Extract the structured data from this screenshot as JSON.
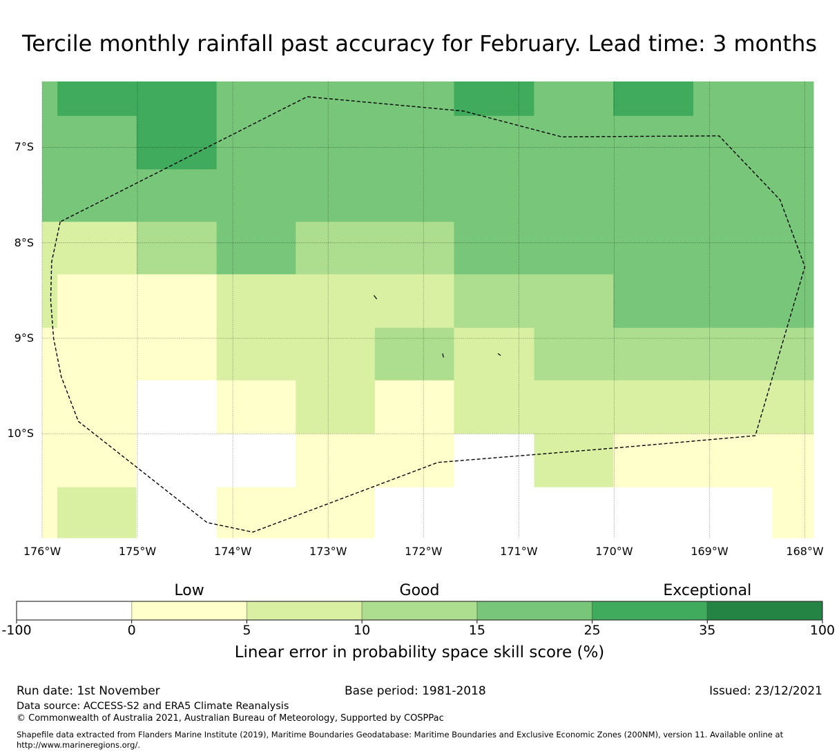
{
  "title": "Tercile monthly rainfall past accuracy for February. Lead time: 3 months",
  "chart_data": {
    "type": "heatmap",
    "title": "Tercile monthly rainfall past accuracy for February. Lead time: 3 months",
    "xlabel": "",
    "ylabel": "",
    "xlim": [
      -176.0,
      -167.91
    ],
    "ylim": [
      -11.09,
      -6.31
    ],
    "grid": true,
    "x_ticks": [
      {
        "value": -176,
        "label": "176°W"
      },
      {
        "value": -175,
        "label": "175°W"
      },
      {
        "value": -174,
        "label": "174°W"
      },
      {
        "value": -173,
        "label": "173°W"
      },
      {
        "value": -172,
        "label": "172°W"
      },
      {
        "value": -171,
        "label": "171°W"
      },
      {
        "value": -170,
        "label": "170°W"
      },
      {
        "value": -169,
        "label": "169°W"
      },
      {
        "value": -168,
        "label": "168°W"
      }
    ],
    "y_ticks": [
      {
        "value": -7,
        "label": "7°S"
      },
      {
        "value": -8,
        "label": "8°S"
      },
      {
        "value": -9,
        "label": "9°S"
      },
      {
        "value": -10,
        "label": "10°S"
      }
    ],
    "lon_edges": [
      -176.0,
      -175.84,
      -175.01,
      -174.17,
      -173.34,
      -172.51,
      -171.68,
      -170.84,
      -170.01,
      -169.17,
      -168.34,
      -167.91
    ],
    "lat_edges": [
      -6.31,
      -6.67,
      -7.23,
      -7.78,
      -8.33,
      -8.89,
      -9.44,
      -10.0,
      -10.56,
      -11.09
    ],
    "cell_class": [
      [
        4,
        5,
        5,
        4,
        4,
        4,
        5,
        4,
        5,
        4,
        4
      ],
      [
        4,
        4,
        5,
        4,
        4,
        4,
        4,
        4,
        4,
        4,
        4
      ],
      [
        4,
        4,
        4,
        4,
        4,
        4,
        4,
        4,
        4,
        4,
        4
      ],
      [
        2,
        2,
        3,
        4,
        3,
        3,
        4,
        4,
        4,
        4,
        4
      ],
      [
        2,
        1,
        1,
        2,
        2,
        2,
        3,
        3,
        4,
        4,
        4
      ],
      [
        1,
        1,
        1,
        2,
        2,
        3,
        2,
        3,
        3,
        3,
        3
      ],
      [
        1,
        1,
        0,
        1,
        2,
        1,
        2,
        2,
        2,
        2,
        2
      ],
      [
        1,
        1,
        0,
        0,
        1,
        1,
        0,
        2,
        1,
        1,
        1
      ],
      [
        1,
        2,
        0,
        1,
        1,
        0,
        0,
        0,
        0,
        0,
        1
      ]
    ],
    "eez_boundary": [
      [
        -175.81,
        -7.78
      ],
      [
        -175.9,
        -8.2
      ],
      [
        -175.91,
        -8.6
      ],
      [
        -175.88,
        -9.0
      ],
      [
        -175.8,
        -9.4
      ],
      [
        -175.62,
        -9.87
      ],
      [
        -174.27,
        -10.93
      ],
      [
        -173.79,
        -11.03
      ],
      [
        -171.85,
        -10.3
      ],
      [
        -170.0,
        -10.15
      ],
      [
        -168.52,
        -10.02
      ],
      [
        -168.0,
        -8.25
      ],
      [
        -168.26,
        -7.55
      ],
      [
        -168.9,
        -6.88
      ],
      [
        -170.55,
        -6.89
      ],
      [
        -171.58,
        -6.62
      ],
      [
        -173.22,
        -6.47
      ],
      [
        -175.81,
        -7.78
      ]
    ],
    "islands": [
      [
        [
          -172.52,
          -8.55
        ],
        [
          -172.49,
          -8.59
        ]
      ],
      [
        [
          -171.8,
          -9.16
        ],
        [
          -171.79,
          -9.2
        ]
      ],
      [
        [
          -171.22,
          -9.16
        ],
        [
          -171.19,
          -9.18
        ]
      ]
    ],
    "colorbar": {
      "label": "Linear error in probability space skill score (%)",
      "boundaries": [
        -100,
        0,
        5,
        10,
        15,
        25,
        35,
        100
      ],
      "tick_labels": [
        "-100",
        "0",
        "5",
        "10",
        "15",
        "25",
        "35",
        "100"
      ],
      "colors": [
        "#ffffff",
        "#ffffcc",
        "#d9f0a3",
        "#addd8e",
        "#78c679",
        "#41ab5d",
        "#238443"
      ],
      "category_labels": [
        {
          "label": "Low",
          "at": 2.5
        },
        {
          "label": "Good",
          "at": 12.5
        },
        {
          "label": "Exceptional",
          "at": 35
        }
      ]
    }
  },
  "footer": {
    "run_date": "Run date: 1st November",
    "base_period": "Base period: 1981-2018",
    "issued": "Issued: 23/12/2021",
    "data_source": "Data source: ACCESS-S2 and ERA5 Climate Reanalysis",
    "copyright": "© Commonwealth of Australia 2021, Australian Bureau of Meteorology, Supported by COSPPac",
    "shapefile_line1": "Shapefile data extracted from Flanders Marine Institute (2019), Maritime Boundaries Geodatabase: Maritime Boundaries and Exclusive Economic Zones (200NM), version 11. Available online at",
    "shapefile_line2": "http://www.marineregions.org/."
  }
}
